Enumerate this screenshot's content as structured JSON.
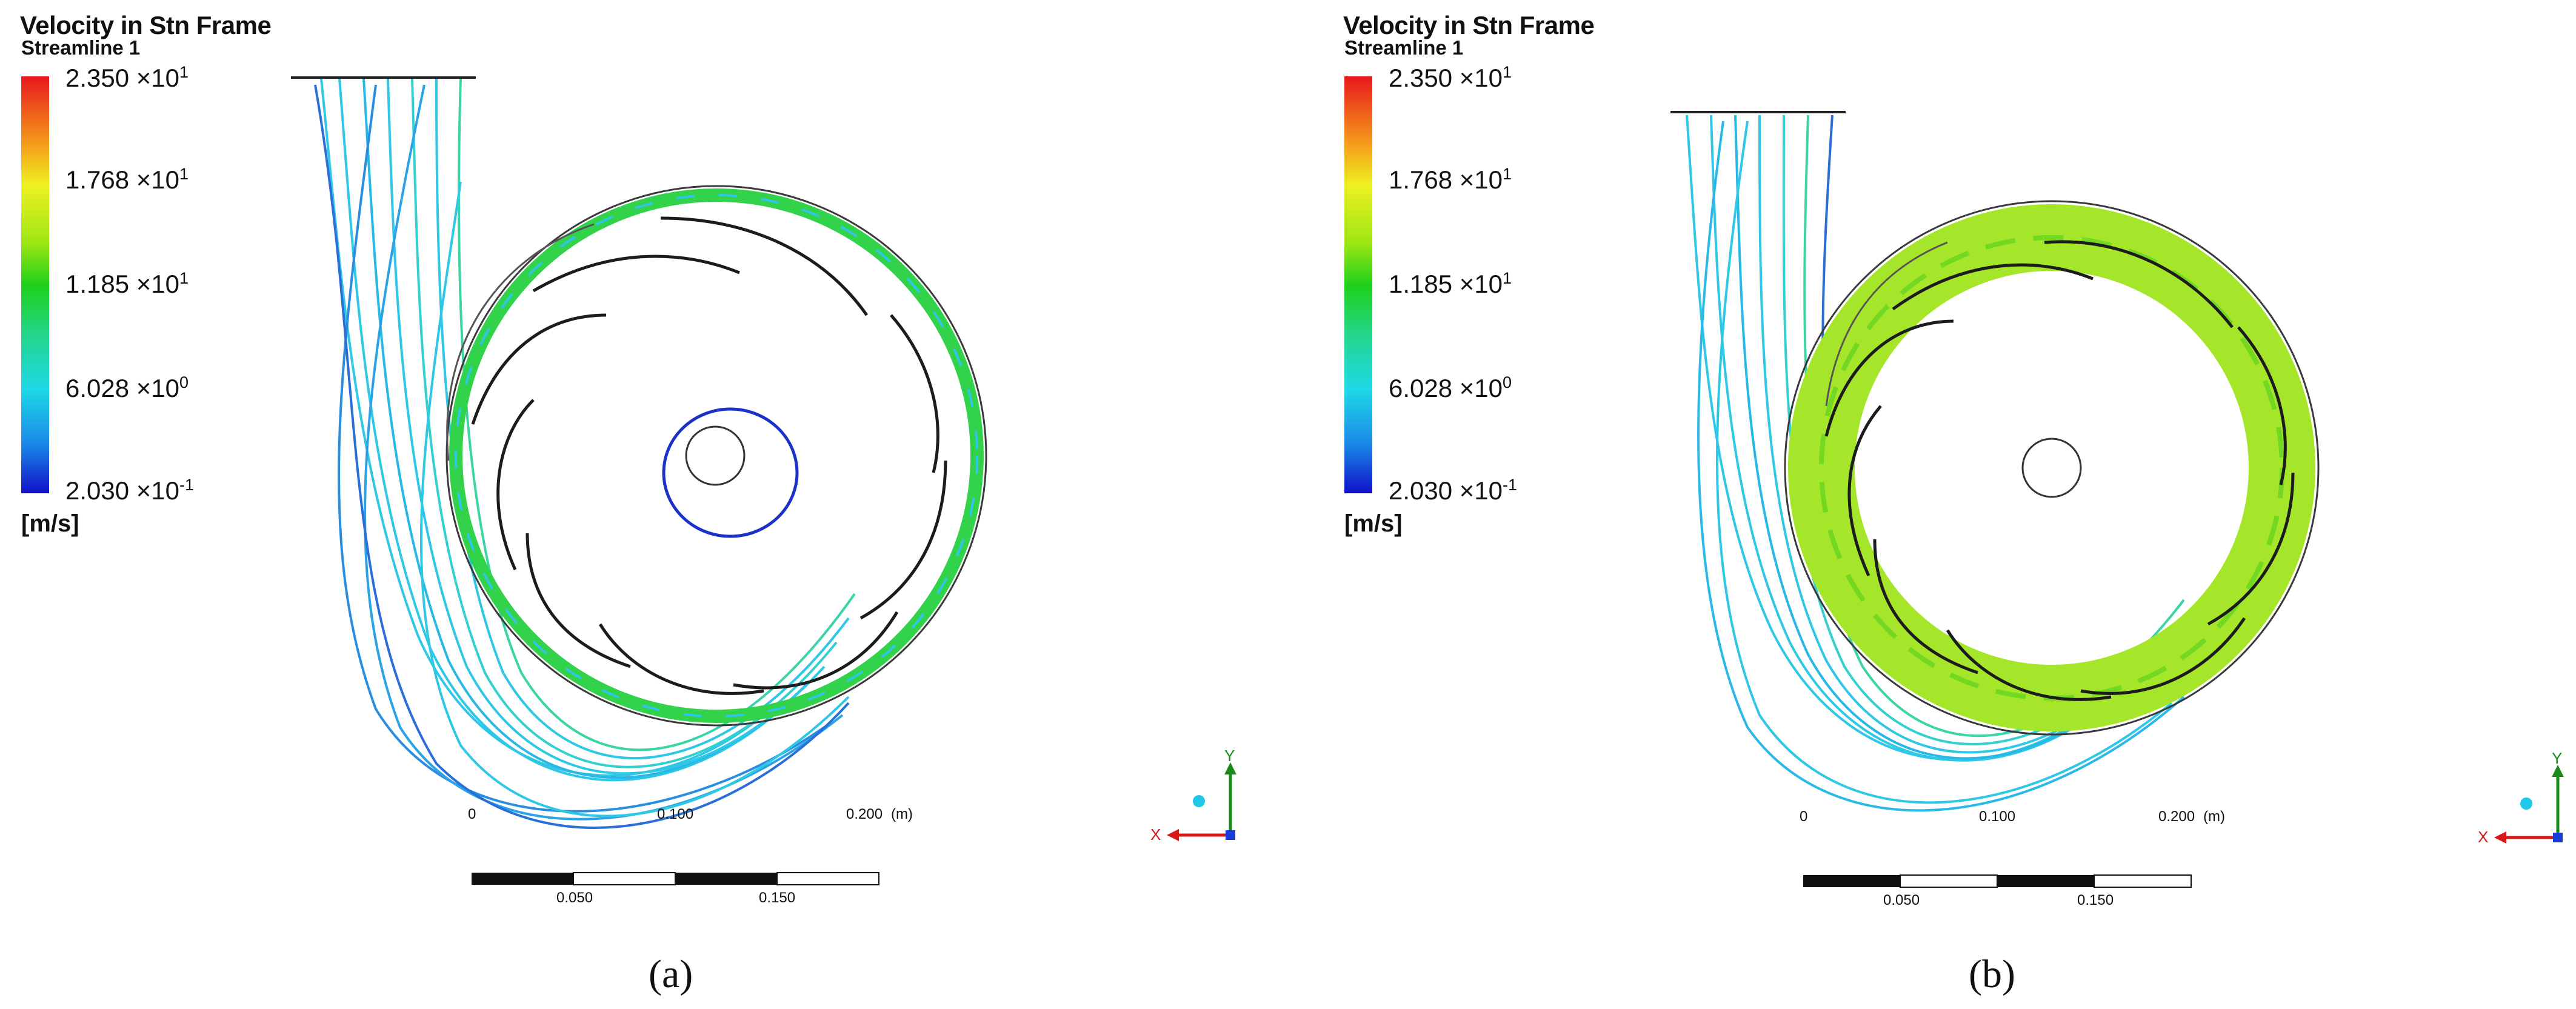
{
  "colors": {
    "blade": "#1c1c1c",
    "casing": "#3a3a3a",
    "stream_cyan": "#2ec8e6",
    "stream_green": "#32d24a",
    "stream_lime": "#a6e62a",
    "stream_blue": "#2b44d8",
    "axis_x": "#d81818",
    "axis_y": "#1a8a1a"
  },
  "panels": [
    {
      "id": "a",
      "caption": "(a)",
      "legend": {
        "title": "Velocity in Stn Frame",
        "subtitle": "Streamline 1",
        "ticks": [
          {
            "mantissa": "2.350 ×10",
            "exp": "1",
            "value": 23.5
          },
          {
            "mantissa": "1.768 ×10",
            "exp": "1",
            "value": 17.68
          },
          {
            "mantissa": "1.185 ×10",
            "exp": "1",
            "value": 11.85
          },
          {
            "mantissa": "6.028 ×10",
            "exp": "0",
            "value": 6.028
          },
          {
            "mantissa": "2.030 ×10",
            "exp": "-1",
            "value": 0.203
          }
        ],
        "unit": "[m/s]"
      },
      "scale": {
        "top_labels": [
          "0",
          "0.100",
          "0.200"
        ],
        "bottom_labels": [
          "0.050",
          "0.150"
        ],
        "unit": "(m)"
      },
      "axes": {
        "x": "X",
        "y": "Y"
      }
    },
    {
      "id": "b",
      "caption": "(b)",
      "legend": {
        "title": "Velocity in Stn Frame",
        "subtitle": "Streamline 1",
        "ticks": [
          {
            "mantissa": "2.350 ×10",
            "exp": "1",
            "value": 23.5
          },
          {
            "mantissa": "1.768 ×10",
            "exp": "1",
            "value": 17.68
          },
          {
            "mantissa": "1.185 ×10",
            "exp": "1",
            "value": 11.85
          },
          {
            "mantissa": "6.028 ×10",
            "exp": "0",
            "value": 6.028
          },
          {
            "mantissa": "2.030 ×10",
            "exp": "-1",
            "value": 0.203
          }
        ],
        "unit": "[m/s]"
      },
      "scale": {
        "top_labels": [
          "0",
          "0.100",
          "0.200"
        ],
        "bottom_labels": [
          "0.050",
          "0.150"
        ],
        "unit": "(m)"
      },
      "axes": {
        "x": "X",
        "y": "Y"
      }
    }
  ]
}
